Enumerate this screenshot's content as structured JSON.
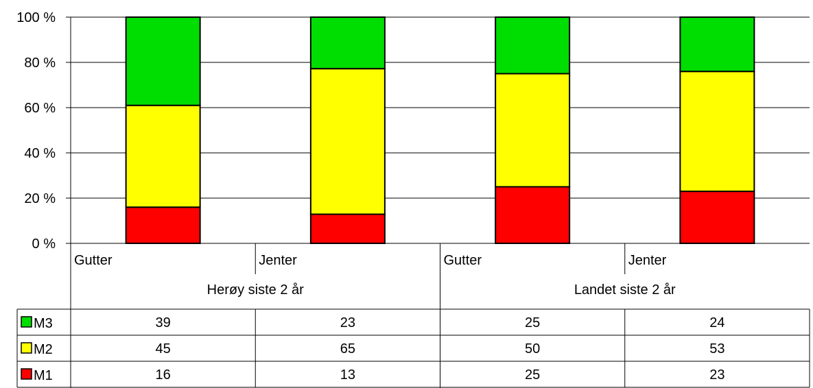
{
  "chart_data": {
    "type": "bar",
    "stacked": true,
    "percent_stacked": true,
    "ylim": [
      0,
      100
    ],
    "y_ticks": [
      "0 %",
      "20 %",
      "40 %",
      "60 %",
      "80 %",
      "100 %"
    ],
    "categories": [
      "Gutter",
      "Jenter",
      "Gutter",
      "Jenter"
    ],
    "groups": [
      "Herøy siste 2 år",
      "Landet siste 2 år"
    ],
    "series": [
      {
        "name": "M1",
        "color": "#ff0000",
        "values": [
          16,
          13,
          25,
          23
        ]
      },
      {
        "name": "M2",
        "color": "#ffff00",
        "values": [
          45,
          65,
          50,
          53
        ]
      },
      {
        "name": "M3",
        "color": "#00dd00",
        "values": [
          39,
          23,
          25,
          24
        ]
      }
    ],
    "table_order": [
      "M3",
      "M2",
      "M1"
    ],
    "grid": true
  }
}
